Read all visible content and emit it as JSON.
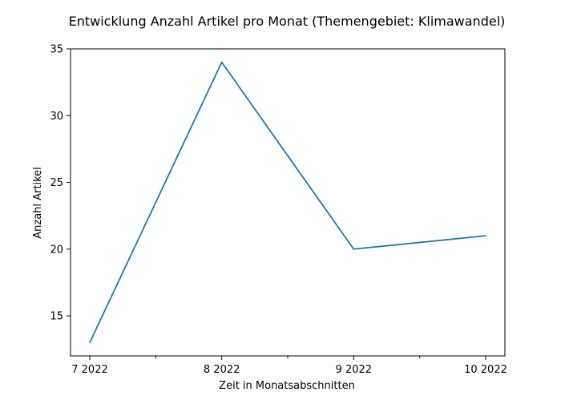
{
  "chart_data": {
    "type": "line",
    "title": "Entwicklung Anzahl Artikel pro Monat (Themengebiet: Klimawandel)",
    "xlabel": "Zeit in Monatsabschnitten",
    "ylabel": "Anzahl Artikel",
    "categories": [
      "7 2022",
      "8 2022",
      "9 2022",
      "10 2022"
    ],
    "x_ticks": [
      "7 2022",
      "8 2022",
      "9 2022",
      "10 2022"
    ],
    "y_ticks": [
      15,
      20,
      25,
      30,
      35
    ],
    "ylim": [
      12.0,
      35.0
    ],
    "grid": false,
    "series": [
      {
        "values": [
          13,
          34,
          20,
          21
        ],
        "color": "#1f77b4"
      }
    ]
  }
}
